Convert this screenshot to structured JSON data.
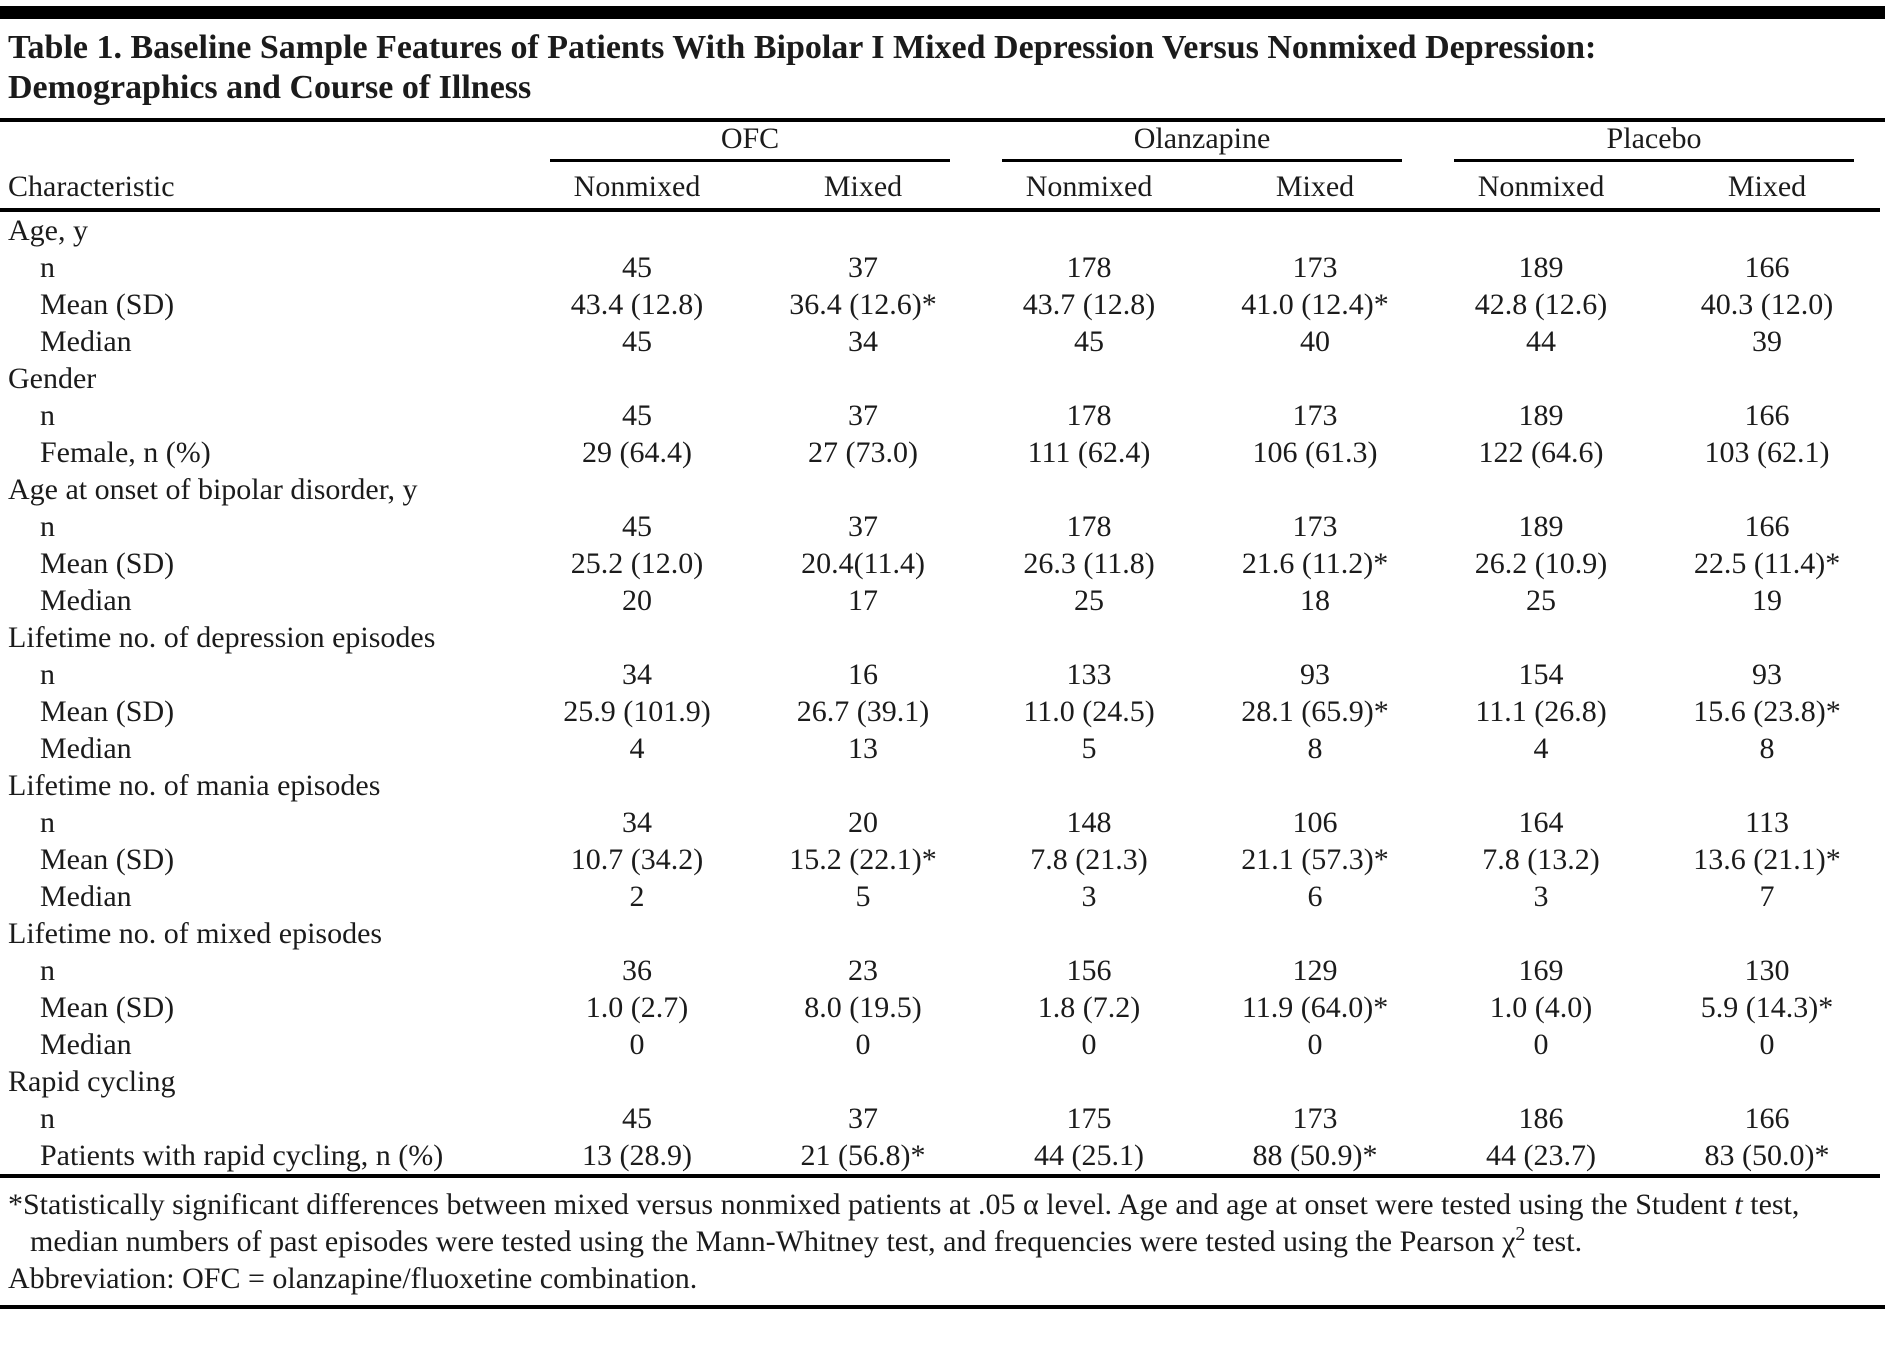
{
  "title": {
    "line1": "Table 1. Baseline Sample Features of Patients With Bipolar I Mixed Depression Versus Nonmixed Depression:",
    "line2": "Demographics and Course of Illness"
  },
  "table": {
    "row_header": "Characteristic",
    "groups": [
      {
        "label": "OFC"
      },
      {
        "label": "Olanzapine"
      },
      {
        "label": "Placebo"
      }
    ],
    "subheaders": [
      "Nonmixed",
      "Mixed",
      "Nonmixed",
      "Mixed",
      "Nonmixed",
      "Mixed"
    ],
    "sections": [
      {
        "label": "Age, y",
        "rows": [
          {
            "label": "n",
            "values": [
              "45",
              "37",
              "178",
              "173",
              "189",
              "166"
            ]
          },
          {
            "label": "Mean (SD)",
            "values": [
              "43.4 (12.8)",
              "36.4 (12.6)*",
              "43.7 (12.8)",
              "41.0 (12.4)*",
              "42.8 (12.6)",
              "40.3 (12.0)"
            ]
          },
          {
            "label": "Median",
            "values": [
              "45",
              "34",
              "45",
              "40",
              "44",
              "39"
            ]
          }
        ]
      },
      {
        "label": "Gender",
        "rows": [
          {
            "label": "n",
            "values": [
              "45",
              "37",
              "178",
              "173",
              "189",
              "166"
            ]
          },
          {
            "label": "Female, n (%)",
            "values": [
              "29 (64.4)",
              "27 (73.0)",
              "111 (62.4)",
              "106 (61.3)",
              "122 (64.6)",
              "103 (62.1)"
            ]
          }
        ]
      },
      {
        "label": "Age at onset of bipolar disorder, y",
        "rows": [
          {
            "label": "n",
            "values": [
              "45",
              "37",
              "178",
              "173",
              "189",
              "166"
            ]
          },
          {
            "label": "Mean (SD)",
            "values": [
              "25.2 (12.0)",
              "20.4(11.4)",
              "26.3 (11.8)",
              "21.6 (11.2)*",
              "26.2 (10.9)",
              "22.5 (11.4)*"
            ]
          },
          {
            "label": "Median",
            "values": [
              "20",
              "17",
              "25",
              "18",
              "25",
              "19"
            ]
          }
        ]
      },
      {
        "label": "Lifetime no. of depression episodes",
        "rows": [
          {
            "label": "n",
            "values": [
              "34",
              "16",
              "133",
              "93",
              "154",
              "93"
            ]
          },
          {
            "label": "Mean (SD)",
            "values": [
              "25.9 (101.9)",
              "26.7 (39.1)",
              "11.0 (24.5)",
              "28.1 (65.9)*",
              "11.1 (26.8)",
              "15.6 (23.8)*"
            ]
          },
          {
            "label": "Median",
            "values": [
              "4",
              "13",
              "5",
              "8",
              "4",
              "8"
            ]
          }
        ]
      },
      {
        "label": "Lifetime no. of mania episodes",
        "rows": [
          {
            "label": "n",
            "values": [
              "34",
              "20",
              "148",
              "106",
              "164",
              "113"
            ]
          },
          {
            "label": "Mean (SD)",
            "values": [
              "10.7 (34.2)",
              "15.2 (22.1)*",
              "7.8 (21.3)",
              "21.1 (57.3)*",
              "7.8 (13.2)",
              "13.6 (21.1)*"
            ]
          },
          {
            "label": "Median",
            "values": [
              "2",
              "5",
              "3",
              "6",
              "3",
              "7"
            ]
          }
        ]
      },
      {
        "label": "Lifetime no. of mixed episodes",
        "rows": [
          {
            "label": "n",
            "values": [
              "36",
              "23",
              "156",
              "129",
              "169",
              "130"
            ]
          },
          {
            "label": "Mean (SD)",
            "values": [
              "1.0 (2.7)",
              "8.0 (19.5)",
              "1.8 (7.2)",
              "11.9 (64.0)*",
              "1.0 (4.0)",
              "5.9 (14.3)*"
            ]
          },
          {
            "label": "Median",
            "values": [
              "0",
              "0",
              "0",
              "0",
              "0",
              "0"
            ]
          }
        ]
      },
      {
        "label": "Rapid cycling",
        "rows": [
          {
            "label": "n",
            "values": [
              "45",
              "37",
              "175",
              "173",
              "186",
              "166"
            ]
          },
          {
            "label": "Patients with rapid cycling, n (%)",
            "values": [
              "13 (28.9)",
              "21 (56.8)*",
              "44 (25.1)",
              "88 (50.9)*",
              "44 (23.7)",
              "83 (50.0)*"
            ]
          }
        ]
      }
    ]
  },
  "footnotes": {
    "significance": {
      "part1": "*Statistically significant differences between mixed versus nonmixed patients at .05 α level. Age and age at onset were tested using the Student ",
      "t_italic": "t",
      "part2": " test, median numbers of past episodes were tested using the Mann-Whitney test, and frequencies were tested using the Pearson χ",
      "sup2": "2",
      "part3": " test."
    },
    "abbreviation": "Abbreviation: OFC = olanzapine/fluoxetine combination."
  },
  "colors": {
    "text": "#1b1b1b",
    "rule": "#000000",
    "background": "#ffffff"
  }
}
